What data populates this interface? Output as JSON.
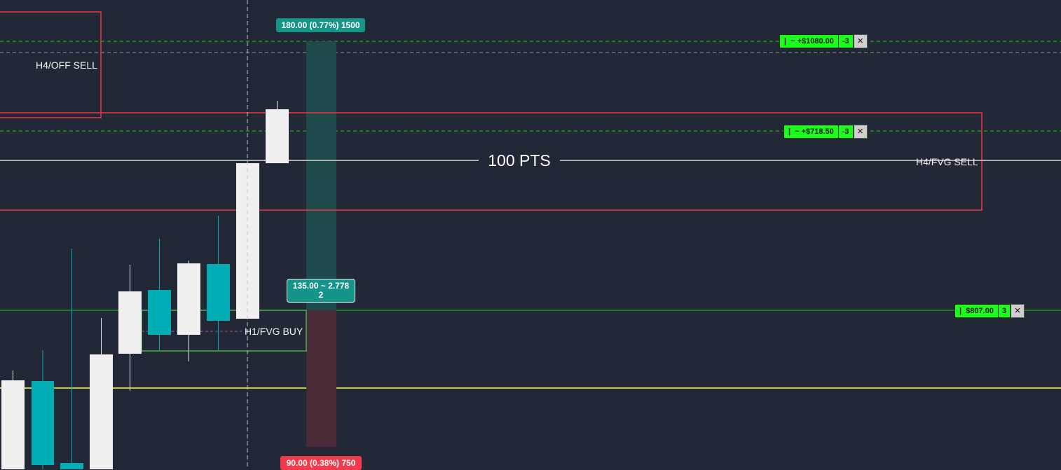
{
  "colors": {
    "background": "#222835",
    "bull_candle": "#f0f0f0",
    "bear_candle": "#00adb5",
    "sell_zone": "#f23645",
    "buy_zone": "#4caf50",
    "take_profit_area": "#1e4a4c",
    "stop_area": "#4a2b38",
    "order_line": "#16d016",
    "yellow_line": "#ffff33",
    "order_tag": "#19ff1a",
    "target_pill": "#15948a",
    "stop_pill": "#f23a4d"
  },
  "zones": {
    "h4_off_sell": "H4/OFF SELL",
    "h4_fvg_sell": "H4/FVG SELL",
    "h1_fvg_buy": "H1/FVG BUY"
  },
  "measure": {
    "points_label": "100 PTS"
  },
  "position_tool": {
    "target_label": "180.00 (0.77%) 1500",
    "rr_line1": "135.00 ~ 2.778",
    "rr_line2": "2",
    "stop_label": "90.00 (0.38%) 750"
  },
  "orders": [
    {
      "bar": "|",
      "pnl": "~ +$1080.00",
      "qty": "-3",
      "close_icon": "×"
    },
    {
      "bar": "|",
      "pnl": "~ +$718.50",
      "qty": "-3",
      "close_icon": "×"
    },
    {
      "bar": "|",
      "pnl": "$807.00",
      "qty": "3",
      "close_icon": "×"
    }
  ],
  "icons": {
    "close": "close-icon"
  }
}
